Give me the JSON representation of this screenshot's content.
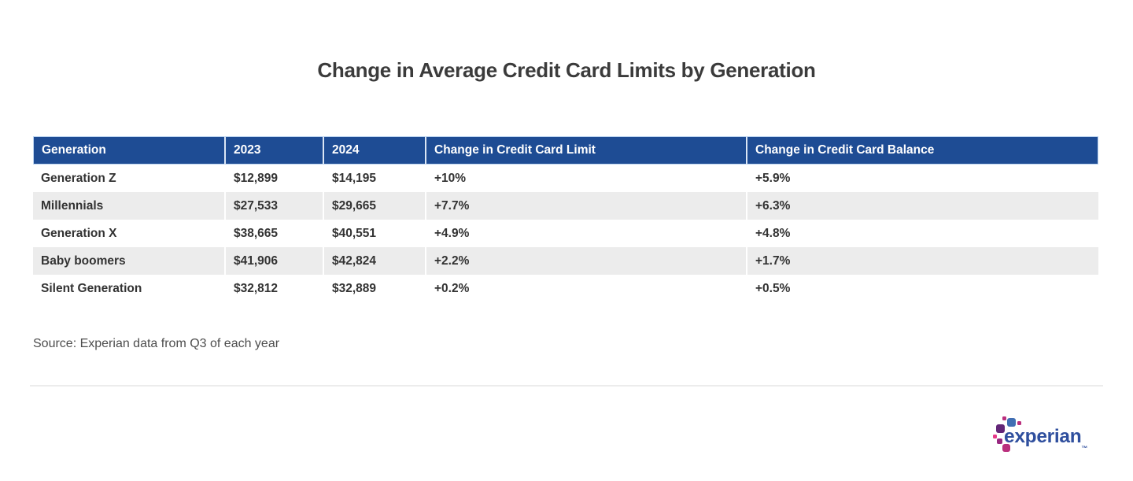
{
  "page": {
    "title": "Change in Average Credit Card Limits by Generation",
    "source": "Source: Experian data from Q3 of each year"
  },
  "chart_data": {
    "type": "table",
    "title": "Change in Average Credit Card Limits by Generation",
    "columns": [
      "Generation",
      "2023",
      "2024",
      "Change in Credit Card Limit",
      "Change in Credit Card Balance"
    ],
    "rows": [
      [
        "Generation Z",
        "$12,899",
        "$14,195",
        "+10%",
        "+5.9%"
      ],
      [
        "Millennials",
        "$27,533",
        "$29,665",
        "+7.7%",
        "+6.3%"
      ],
      [
        "Generation X",
        "$38,665",
        "$40,551",
        "+4.9%",
        "+4.8%"
      ],
      [
        "Baby boomers",
        "$41,906",
        "$42,824",
        "+2.2%",
        "+1.7%"
      ],
      [
        "Silent Generation",
        "$32,812",
        "$32,889",
        "+0.2%",
        "+0.5%"
      ]
    ],
    "numeric": {
      "limits_2023": [
        12899,
        27533,
        38665,
        41906,
        32812
      ],
      "limits_2024": [
        14195,
        29665,
        40551,
        42824,
        32889
      ],
      "limit_change_pct": [
        10,
        7.7,
        4.9,
        2.2,
        0.2
      ],
      "balance_change_pct": [
        5.9,
        6.3,
        4.8,
        1.7,
        0.5
      ]
    },
    "source": "Source: Experian data from Q3 of each year",
    "layout": {
      "striped_rows": true,
      "header_position": "top"
    }
  },
  "logo": {
    "wordmark": "experian",
    "trademark": "™"
  },
  "colors": {
    "header_bg": "#1e4c94",
    "header_text": "#ffffff",
    "row_stripe": "#ececec",
    "body_text": "#333333",
    "title_text": "#3b3b3b",
    "source_text": "#4d4d4d",
    "logo_blue": "#406eb3",
    "logo_dark_blue": "#2f4f9e",
    "logo_purple": "#632678",
    "logo_magenta": "#ba2f7d",
    "logo_pink": "#e63888"
  }
}
